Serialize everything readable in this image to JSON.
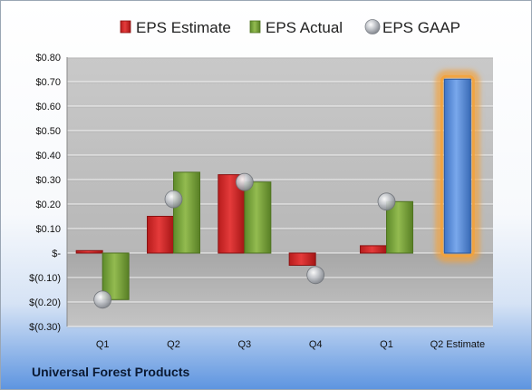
{
  "chart_data": {
    "type": "bar",
    "categories": [
      "Q1",
      "Q2",
      "Q3",
      "Q4",
      "Q1",
      "Q2 Estimate"
    ],
    "series": [
      {
        "name": "EPS Estimate",
        "color": "#d22a2a",
        "values": [
          0.01,
          0.15,
          0.32,
          -0.05,
          0.03,
          null
        ]
      },
      {
        "name": "EPS Actual",
        "color": "#7da33c",
        "values": [
          -0.19,
          0.33,
          0.29,
          null,
          0.21,
          0.71
        ]
      },
      {
        "name": "EPS GAAP",
        "color": "#b8bcc2",
        "values": [
          -0.19,
          0.22,
          0.29,
          -0.09,
          0.21,
          null
        ]
      }
    ],
    "highlight": {
      "category_index": 5,
      "color": "#5b8fd8",
      "glow": "#f4a23a"
    },
    "ylim": [
      -0.3,
      0.8
    ],
    "yticks": [
      -0.3,
      -0.2,
      -0.1,
      0,
      0.1,
      0.2,
      0.3,
      0.4,
      0.5,
      0.6,
      0.7,
      0.8
    ],
    "ytick_labels": [
      "$(0.30)",
      "$(0.20)",
      "$(0.10)",
      "$-",
      "$0.10",
      "$0.20",
      "$0.30",
      "$0.40",
      "$0.50",
      "$0.60",
      "$0.70",
      "$0.80"
    ],
    "grid": true,
    "legend_position": "top",
    "title": "",
    "xlabel": "",
    "ylabel": ""
  },
  "footer": {
    "company": "Universal Forest Products"
  }
}
